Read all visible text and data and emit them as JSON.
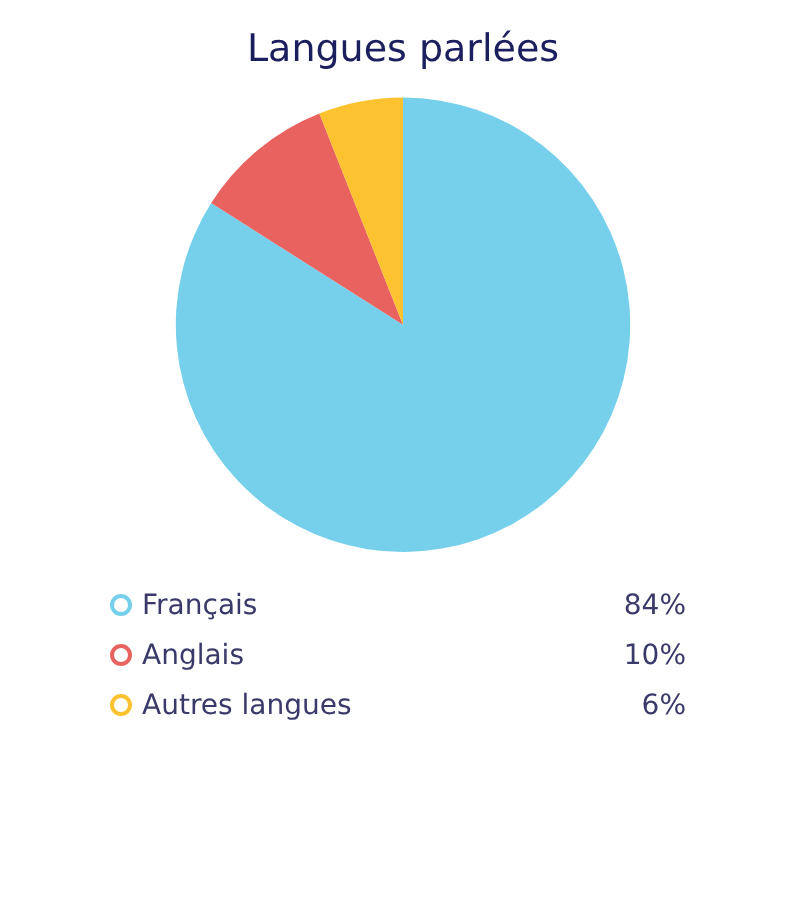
{
  "chart_data": {
    "type": "pie",
    "title": "Langues parlées",
    "categories": [
      "Français",
      "Anglais",
      "Autres langues"
    ],
    "values": [
      84,
      10,
      6
    ],
    "colors": [
      "#76d0ec",
      "#e8635f",
      "#fdc22f"
    ],
    "value_labels": [
      "84%",
      "10%",
      "6%"
    ],
    "legend": "bottom"
  }
}
